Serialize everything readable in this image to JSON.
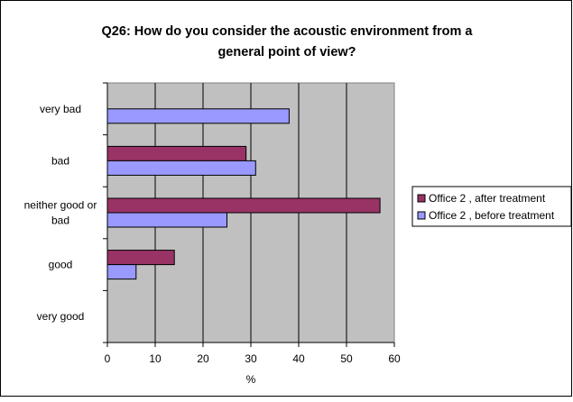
{
  "chart_data": {
    "type": "bar",
    "orientation": "horizontal",
    "title_line1": "Q26: How do you consider the acoustic environment from a",
    "title_line2": "general point of view?",
    "xlabel": "%",
    "ylabel": "",
    "xlim": [
      0,
      60
    ],
    "xticks": [
      0,
      10,
      20,
      30,
      40,
      50,
      60
    ],
    "grid": true,
    "legend_position": "right",
    "plot_background": "#c0c0c0",
    "categories": [
      {
        "label_lines": [
          "very bad"
        ]
      },
      {
        "label_lines": [
          "bad"
        ]
      },
      {
        "label_lines": [
          "neither good or",
          "bad"
        ]
      },
      {
        "label_lines": [
          "good"
        ]
      },
      {
        "label_lines": [
          "very good"
        ]
      }
    ],
    "series": [
      {
        "name": "Office 2 , after treatment",
        "color": "#993366",
        "values": [
          0,
          29,
          57,
          14,
          0
        ]
      },
      {
        "name": "Office 2 , before treatment",
        "color": "#9999ff",
        "values": [
          38,
          31,
          25,
          6,
          0
        ]
      }
    ]
  }
}
